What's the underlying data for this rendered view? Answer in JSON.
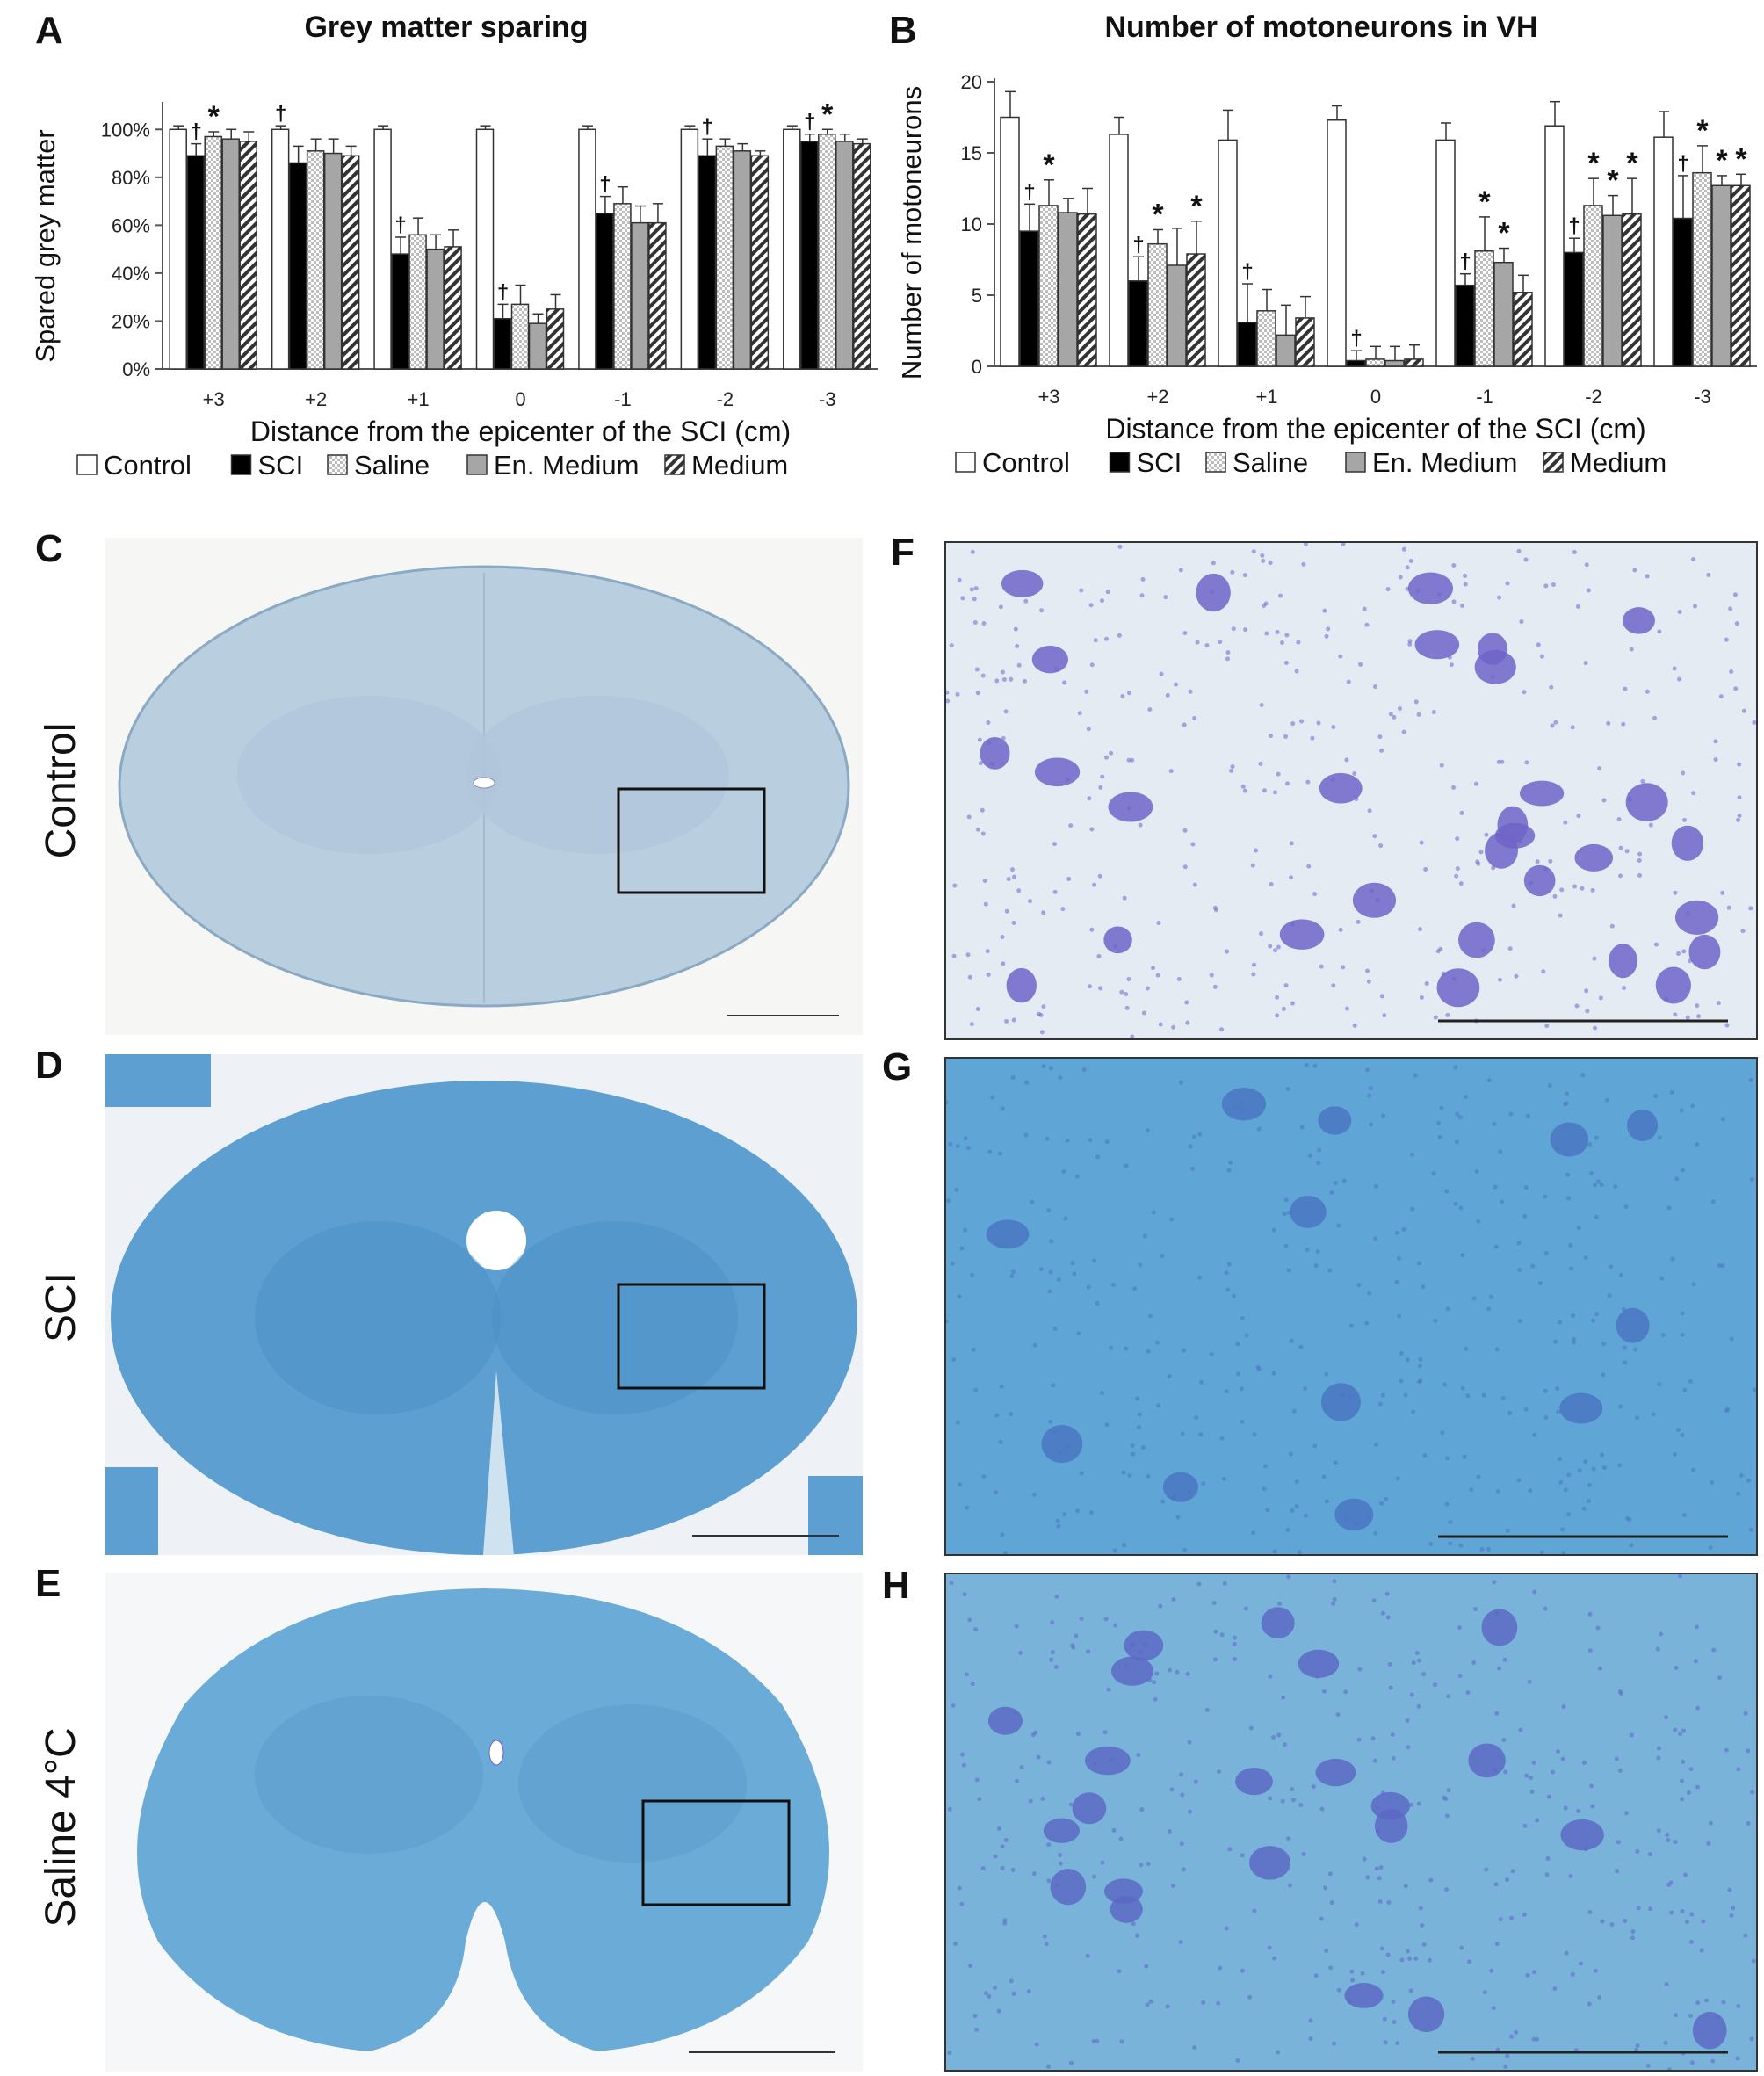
{
  "panels": {
    "A": "A",
    "B": "B",
    "C": "C",
    "D": "D",
    "E": "E",
    "F": "F",
    "G": "G",
    "H": "H"
  },
  "row_labels": {
    "control": "Control",
    "sci": "SCI",
    "saline": "Saline 4°C"
  },
  "legend": [
    "Control",
    "SCI",
    "Saline",
    "En. Medium",
    "Medium"
  ],
  "colors": {
    "control": "#ffffff",
    "sci": "#000000",
    "saline": "#e6e6e6",
    "en_medium": "#a6a6a6",
    "medium": "#cfcfcf",
    "control_tissue": "#b9cfe0",
    "sci_tissue": "#5d9fd1",
    "saline_tissue": "#6aabd8",
    "neuron": "#6f5fc8"
  },
  "chart_data": [
    {
      "type": "bar",
      "title": "Grey matter sparing",
      "xlabel": "Distance from the epicenter of the SCI (cm)",
      "ylabel": "Spared grey matter",
      "categories": [
        "+3",
        "+2",
        "+1",
        "0",
        "-1",
        "-2",
        "-3"
      ],
      "ylim": [
        0,
        110
      ],
      "yticks": [
        "0%",
        "20%",
        "40%",
        "60%",
        "80%",
        "100%"
      ],
      "series": [
        {
          "name": "Control",
          "values": [
            100,
            100,
            100,
            100,
            100,
            100,
            100
          ],
          "err": [
            1.5,
            1.5,
            1.5,
            1.5,
            1.5,
            1.5,
            1.5
          ]
        },
        {
          "name": "SCI",
          "values": [
            89,
            86,
            48,
            21,
            65,
            89,
            95
          ],
          "err": [
            5,
            7,
            7,
            6,
            7,
            7,
            3
          ]
        },
        {
          "name": "Saline",
          "values": [
            97,
            91,
            56,
            27,
            69,
            93,
            98
          ],
          "err": [
            2,
            5,
            7,
            8,
            7,
            3,
            2
          ]
        },
        {
          "name": "En. Medium",
          "values": [
            96,
            90,
            50,
            19,
            61,
            91,
            95
          ],
          "err": [
            4,
            6,
            6,
            4,
            7,
            3,
            3
          ]
        },
        {
          "name": "Medium",
          "values": [
            95,
            89,
            51,
            25,
            61,
            89,
            94
          ],
          "err": [
            4,
            4,
            7,
            6,
            8,
            2,
            2
          ]
        }
      ],
      "annotations": [
        {
          "category": "+3",
          "series": "SCI",
          "mark": "†"
        },
        {
          "category": "+3",
          "series": "Saline",
          "mark": "*"
        },
        {
          "category": "+2",
          "series": "Control",
          "mark": "†"
        },
        {
          "category": "+1",
          "series": "SCI",
          "mark": "†"
        },
        {
          "category": "0",
          "series": "SCI",
          "mark": "†"
        },
        {
          "category": "-1",
          "series": "SCI",
          "mark": "†"
        },
        {
          "category": "-2",
          "series": "SCI",
          "mark": "†"
        },
        {
          "category": "-3",
          "series": "SCI",
          "mark": "†"
        },
        {
          "category": "-3",
          "series": "Saline",
          "mark": "*"
        }
      ]
    },
    {
      "type": "bar",
      "title": "Number of motoneurons in VH",
      "xlabel": "Distance from the epicenter of the SCI (cm)",
      "ylabel": "Number of motoneurons",
      "categories": [
        "+3",
        "+2",
        "+1",
        "0",
        "-1",
        "-2",
        "-3"
      ],
      "ylim": [
        0,
        20
      ],
      "yticks": [
        "0",
        "5",
        "10",
        "15",
        "20"
      ],
      "series": [
        {
          "name": "Control",
          "values": [
            17.5,
            16.3,
            15.9,
            17.3,
            15.9,
            16.9,
            16.1
          ],
          "err": [
            1.8,
            1.2,
            2.1,
            1.0,
            1.2,
            1.7,
            1.8
          ]
        },
        {
          "name": "SCI",
          "values": [
            9.5,
            6.0,
            3.1,
            0.4,
            5.7,
            8.0,
            10.4
          ],
          "err": [
            1.9,
            1.7,
            2.7,
            0.7,
            0.8,
            1.0,
            3.0
          ]
        },
        {
          "name": "Saline",
          "values": [
            11.3,
            8.6,
            3.9,
            0.5,
            8.1,
            11.3,
            13.6
          ],
          "err": [
            1.8,
            1.0,
            1.5,
            0.9,
            2.4,
            1.9,
            1.9
          ]
        },
        {
          "name": "En. Medium",
          "values": [
            10.8,
            7.1,
            2.2,
            0.4,
            7.3,
            10.6,
            12.7
          ],
          "err": [
            1.0,
            2.6,
            2.1,
            1.0,
            1.0,
            1.4,
            0.7
          ]
        },
        {
          "name": "Medium",
          "values": [
            10.7,
            7.9,
            3.4,
            0.5,
            5.2,
            10.7,
            12.7
          ],
          "err": [
            1.8,
            2.3,
            1.5,
            1.0,
            1.2,
            2.5,
            0.8
          ]
        }
      ],
      "annotations": [
        {
          "category": "+3",
          "series": "SCI",
          "mark": "†"
        },
        {
          "category": "+3",
          "series": "Saline",
          "mark": "*"
        },
        {
          "category": "+2",
          "series": "SCI",
          "mark": "†"
        },
        {
          "category": "+2",
          "series": "Saline",
          "mark": "*"
        },
        {
          "category": "+2",
          "series": "Medium",
          "mark": "*"
        },
        {
          "category": "+1",
          "series": "SCI",
          "mark": "†"
        },
        {
          "category": "0",
          "series": "SCI",
          "mark": "†"
        },
        {
          "category": "-1",
          "series": "SCI",
          "mark": "†"
        },
        {
          "category": "-1",
          "series": "Saline",
          "mark": "*"
        },
        {
          "category": "-1",
          "series": "En. Medium",
          "mark": "*"
        },
        {
          "category": "-2",
          "series": "SCI",
          "mark": "†"
        },
        {
          "category": "-2",
          "series": "Saline",
          "mark": "*"
        },
        {
          "category": "-2",
          "series": "En. Medium",
          "mark": "*"
        },
        {
          "category": "-2",
          "series": "Medium",
          "mark": "*"
        },
        {
          "category": "-3",
          "series": "SCI",
          "mark": "†"
        },
        {
          "category": "-3",
          "series": "Saline",
          "mark": "*"
        },
        {
          "category": "-3",
          "series": "En. Medium",
          "mark": "*"
        },
        {
          "category": "-3",
          "series": "Medium",
          "mark": "*"
        }
      ]
    }
  ]
}
